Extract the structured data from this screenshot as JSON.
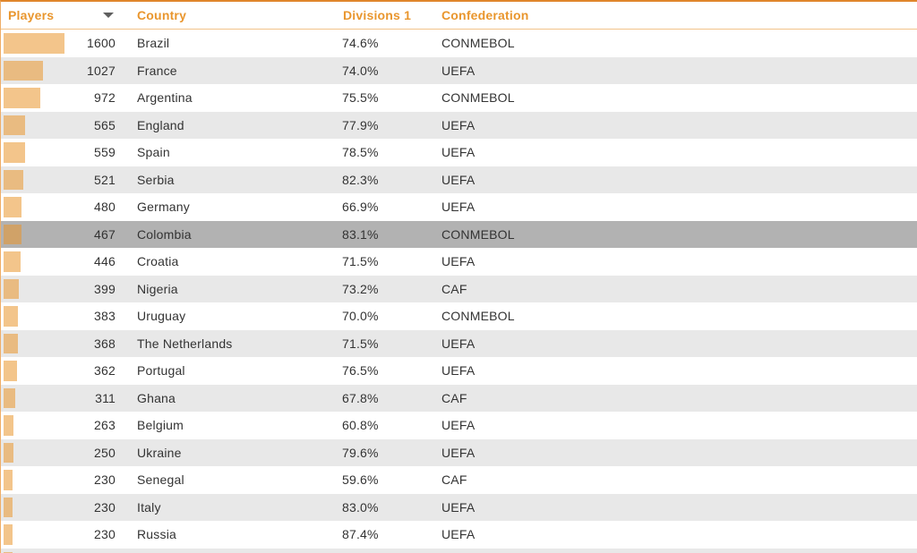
{
  "table": {
    "columns": [
      {
        "label": "Players",
        "sorted": true,
        "sort_direction": "desc"
      },
      {
        "label": "Country"
      },
      {
        "label": "Divisions 1"
      },
      {
        "label": "Confederation"
      }
    ],
    "bar_scale_max": 1600,
    "rows": [
      {
        "players": 1600,
        "country": "Brazil",
        "divisions1": "74.6%",
        "confederation": "CONMEBOL",
        "selected": false
      },
      {
        "players": 1027,
        "country": "France",
        "divisions1": "74.0%",
        "confederation": "UEFA",
        "selected": false
      },
      {
        "players": 972,
        "country": "Argentina",
        "divisions1": "75.5%",
        "confederation": "CONMEBOL",
        "selected": false
      },
      {
        "players": 565,
        "country": "England",
        "divisions1": "77.9%",
        "confederation": "UEFA",
        "selected": false
      },
      {
        "players": 559,
        "country": "Spain",
        "divisions1": "78.5%",
        "confederation": "UEFA",
        "selected": false
      },
      {
        "players": 521,
        "country": "Serbia",
        "divisions1": "82.3%",
        "confederation": "UEFA",
        "selected": false
      },
      {
        "players": 480,
        "country": "Germany",
        "divisions1": "66.9%",
        "confederation": "UEFA",
        "selected": false
      },
      {
        "players": 467,
        "country": "Colombia",
        "divisions1": "83.1%",
        "confederation": "CONMEBOL",
        "selected": true
      },
      {
        "players": 446,
        "country": "Croatia",
        "divisions1": "71.5%",
        "confederation": "UEFA",
        "selected": false
      },
      {
        "players": 399,
        "country": "Nigeria",
        "divisions1": "73.2%",
        "confederation": "CAF",
        "selected": false
      },
      {
        "players": 383,
        "country": "Uruguay",
        "divisions1": "70.0%",
        "confederation": "CONMEBOL",
        "selected": false
      },
      {
        "players": 368,
        "country": "The Netherlands",
        "divisions1": "71.5%",
        "confederation": "UEFA",
        "selected": false
      },
      {
        "players": 362,
        "country": "Portugal",
        "divisions1": "76.5%",
        "confederation": "UEFA",
        "selected": false
      },
      {
        "players": 311,
        "country": "Ghana",
        "divisions1": "67.8%",
        "confederation": "CAF",
        "selected": false
      },
      {
        "players": 263,
        "country": "Belgium",
        "divisions1": "60.8%",
        "confederation": "UEFA",
        "selected": false
      },
      {
        "players": 250,
        "country": "Ukraine",
        "divisions1": "79.6%",
        "confederation": "UEFA",
        "selected": false
      },
      {
        "players": 230,
        "country": "Senegal",
        "divisions1": "59.6%",
        "confederation": "CAF",
        "selected": false
      },
      {
        "players": 230,
        "country": "Italy",
        "divisions1": "83.0%",
        "confederation": "UEFA",
        "selected": false
      },
      {
        "players": 230,
        "country": "Russia",
        "divisions1": "87.4%",
        "confederation": "UEFA",
        "selected": false
      }
    ]
  },
  "chart_data": {
    "type": "table",
    "title": "",
    "columns": [
      "Players",
      "Country",
      "Divisions 1",
      "Confederation"
    ],
    "sorted_by": "Players",
    "sort_direction": "desc",
    "bar_column": "Players",
    "bar_scale_max": 1600,
    "rows": [
      [
        1600,
        "Brazil",
        "74.6%",
        "CONMEBOL"
      ],
      [
        1027,
        "France",
        "74.0%",
        "UEFA"
      ],
      [
        972,
        "Argentina",
        "75.5%",
        "CONMEBOL"
      ],
      [
        565,
        "England",
        "77.9%",
        "UEFA"
      ],
      [
        559,
        "Spain",
        "78.5%",
        "UEFA"
      ],
      [
        521,
        "Serbia",
        "82.3%",
        "UEFA"
      ],
      [
        480,
        "Germany",
        "66.9%",
        "UEFA"
      ],
      [
        467,
        "Colombia",
        "83.1%",
        "CONMEBOL"
      ],
      [
        446,
        "Croatia",
        "71.5%",
        "UEFA"
      ],
      [
        399,
        "Nigeria",
        "73.2%",
        "CAF"
      ],
      [
        383,
        "Uruguay",
        "70.0%",
        "CONMEBOL"
      ],
      [
        368,
        "The Netherlands",
        "71.5%",
        "UEFA"
      ],
      [
        362,
        "Portugal",
        "76.5%",
        "UEFA"
      ],
      [
        311,
        "Ghana",
        "67.8%",
        "CAF"
      ],
      [
        263,
        "Belgium",
        "60.8%",
        "UEFA"
      ],
      [
        250,
        "Ukraine",
        "79.6%",
        "UEFA"
      ],
      [
        230,
        "Senegal",
        "59.6%",
        "CAF"
      ],
      [
        230,
        "Italy",
        "83.0%",
        "UEFA"
      ],
      [
        230,
        "Russia",
        "87.4%",
        "UEFA"
      ]
    ]
  },
  "colors": {
    "header_text": "#e9962e",
    "top_border": "#e0862c",
    "header_underline": "#f2c38a",
    "row_alt_bg": "#e8e8e8",
    "selected_row_bg": "#b2b2b2",
    "bar_color": "#ea962c",
    "bar_opacity": 0.55,
    "text": "#333333",
    "sort_arrow": "#5f5f5f"
  },
  "icons": {
    "sort_desc": "triangle-down"
  }
}
